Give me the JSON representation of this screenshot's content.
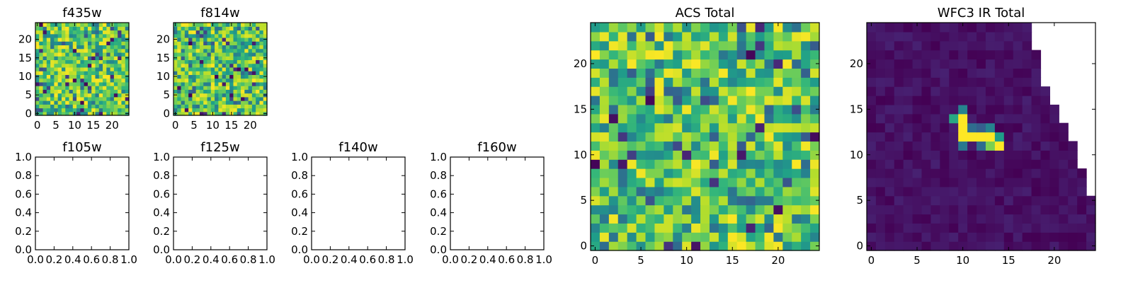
{
  "chart_data": [
    {
      "type": "heatmap",
      "title": "f435w",
      "grid_size": 25,
      "colormap": "viridis",
      "data_description": "pseudo-random noise",
      "seed": 11,
      "xticks": [
        0,
        5,
        10,
        15,
        20
      ],
      "yticks": [
        0,
        5,
        10,
        15,
        20
      ],
      "xlim": [
        -0.5,
        24.5
      ],
      "ylim": [
        -0.5,
        24.5
      ]
    },
    {
      "type": "heatmap",
      "title": "f814w",
      "grid_size": 25,
      "colormap": "viridis",
      "data_description": "pseudo-random noise",
      "seed": 29,
      "xticks": [
        0,
        5,
        10,
        15,
        20
      ],
      "yticks": [
        0,
        5,
        10,
        15,
        20
      ],
      "xlim": [
        -0.5,
        24.5
      ],
      "ylim": [
        -0.5,
        24.5
      ]
    },
    {
      "type": "empty",
      "title": "f105w",
      "xticks": [
        "0.0",
        "0.2",
        "0.4",
        "0.6",
        "0.8",
        "1.0"
      ],
      "yticks": [
        "0.0",
        "0.2",
        "0.4",
        "0.6",
        "0.8",
        "1.0"
      ],
      "xlim": [
        0,
        1
      ],
      "ylim": [
        0,
        1
      ]
    },
    {
      "type": "empty",
      "title": "f125w",
      "xticks": [
        "0.0",
        "0.2",
        "0.4",
        "0.6",
        "0.8",
        "1.0"
      ],
      "yticks": [
        "0.0",
        "0.2",
        "0.4",
        "0.6",
        "0.8",
        "1.0"
      ],
      "xlim": [
        0,
        1
      ],
      "ylim": [
        0,
        1
      ]
    },
    {
      "type": "empty",
      "title": "f140w",
      "xticks": [
        "0.0",
        "0.2",
        "0.4",
        "0.6",
        "0.8",
        "1.0"
      ],
      "yticks": [
        "0.0",
        "0.2",
        "0.4",
        "0.6",
        "0.8",
        "1.0"
      ],
      "xlim": [
        0,
        1
      ],
      "ylim": [
        0,
        1
      ]
    },
    {
      "type": "empty",
      "title": "f160w",
      "xticks": [
        "0.0",
        "0.2",
        "0.4",
        "0.6",
        "0.8",
        "1.0"
      ],
      "yticks": [
        "0.0",
        "0.2",
        "0.4",
        "0.6",
        "0.8",
        "1.0"
      ],
      "xlim": [
        0,
        1
      ],
      "ylim": [
        0,
        1
      ]
    },
    {
      "type": "heatmap",
      "title": "ACS Total",
      "grid_size": 25,
      "colormap": "viridis",
      "data_description": "pseudo-random noise",
      "seed": 47,
      "xticks": [
        0,
        5,
        10,
        15,
        20
      ],
      "yticks": [
        0,
        5,
        10,
        15,
        20
      ],
      "xlim": [
        -0.5,
        24.5
      ],
      "ylim": [
        -0.5,
        24.5
      ]
    },
    {
      "type": "heatmap",
      "title": "WFC3 IR Total",
      "grid_size": 25,
      "colormap": "viridis",
      "data_description": "low uniform background with a bright feature and a blank (NaN) upper-right triangle",
      "seed": 83,
      "background_range": [
        0.0,
        0.09
      ],
      "bright_cells": [
        [
          10,
          15,
          0.45
        ],
        [
          9,
          14,
          0.6
        ],
        [
          10,
          14,
          1.0
        ],
        [
          10,
          13,
          1.0
        ],
        [
          10,
          12,
          1.0
        ],
        [
          11,
          12,
          1.0
        ],
        [
          12,
          12,
          1.0
        ],
        [
          13,
          12,
          1.0
        ],
        [
          11,
          13,
          0.35
        ],
        [
          12,
          13,
          0.3
        ],
        [
          13,
          13,
          0.45
        ],
        [
          14,
          12,
          0.55
        ],
        [
          14,
          11,
          1.0
        ],
        [
          13,
          11,
          0.8
        ],
        [
          12,
          11,
          0.35
        ],
        [
          10,
          11,
          0.4
        ]
      ],
      "blank_boundary": [
        [
          24,
          17.5
        ],
        [
          23,
          17.5
        ],
        [
          22,
          17.5
        ],
        [
          21,
          18.5
        ],
        [
          20,
          18.5
        ],
        [
          19,
          18.5
        ],
        [
          18,
          18.5
        ],
        [
          17,
          19.5
        ],
        [
          16,
          19.5
        ],
        [
          15,
          20.5
        ],
        [
          14,
          20.5
        ],
        [
          13,
          21.5
        ],
        [
          12,
          21.5
        ],
        [
          11,
          22.5
        ],
        [
          10,
          22.5
        ],
        [
          9,
          22.5
        ],
        [
          8,
          23.5
        ],
        [
          7,
          23.5
        ],
        [
          6,
          23.5
        ],
        [
          5,
          24.5
        ]
      ],
      "xticks": [
        0,
        5,
        10,
        15,
        20
      ],
      "yticks": [
        0,
        5,
        10,
        15,
        20
      ],
      "xlim": [
        -0.5,
        24.5
      ],
      "ylim": [
        -0.5,
        24.5
      ]
    }
  ]
}
